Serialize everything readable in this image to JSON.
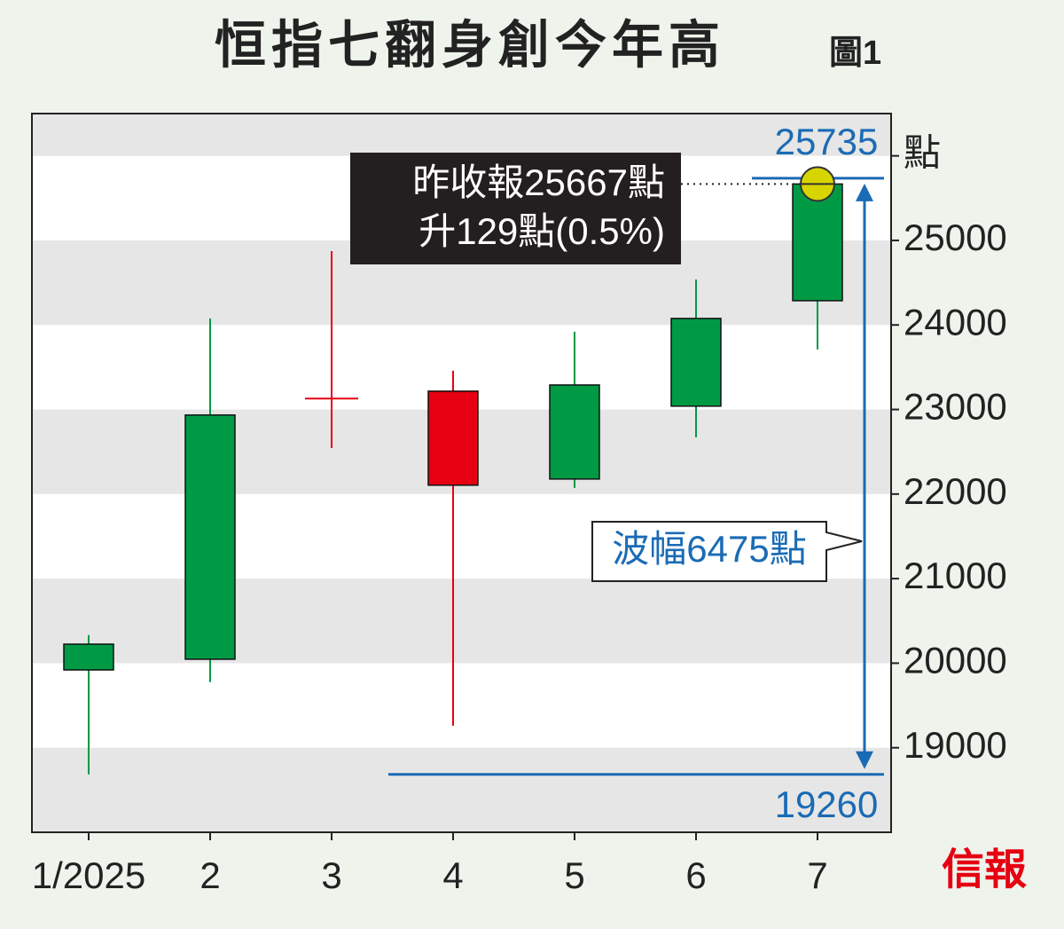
{
  "chart_data": {
    "type": "candlestick",
    "title": "恒指七翻身創今年高",
    "figure_label": "圖1",
    "categories": [
      "1/2025",
      "2",
      "3",
      "4",
      "5",
      "6",
      "7"
    ],
    "open": [
      19920,
      20047,
      23140,
      23217,
      22178,
      23040,
      24287
    ],
    "high": [
      20332,
      24077,
      24874,
      23458,
      23920,
      24538,
      25735
    ],
    "low": [
      18685,
      19776,
      22545,
      19260,
      22073,
      22671,
      23710
    ],
    "close": [
      20225,
      22935,
      23120,
      22105,
      23290,
      24077,
      25667
    ],
    "up_color": "#009a44",
    "down_color": "#e60012",
    "ylim": [
      18000,
      26500
    ],
    "yticks": [
      19000,
      20000,
      21000,
      22000,
      23000,
      24000,
      25000,
      {
        "value": 26000,
        "label": "點"
      }
    ],
    "annotations": {
      "high_label": "25735",
      "low_label": "19260",
      "close_line1": "昨收報25667點",
      "close_line2": "升129點(0.5%)",
      "range_label": "波幅6475點"
    },
    "source": "信報"
  }
}
